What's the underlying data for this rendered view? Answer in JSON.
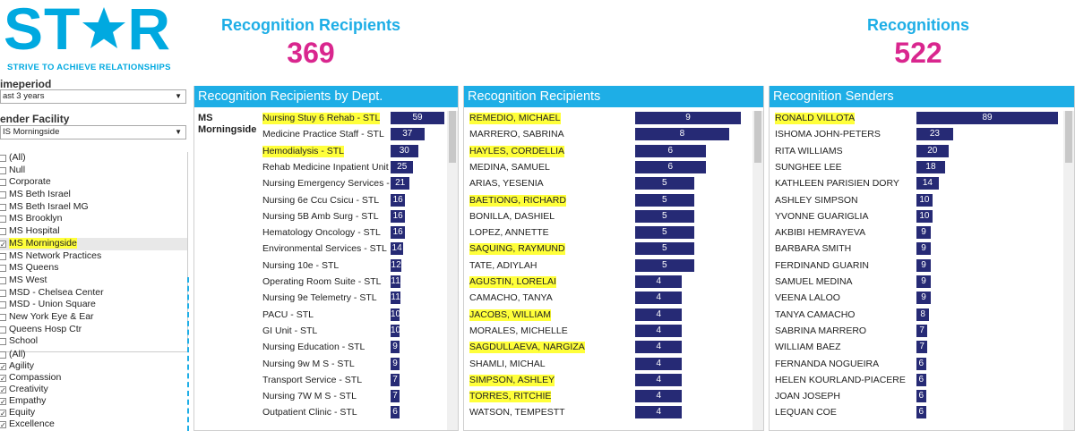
{
  "logo": {
    "text_left": "ST",
    "text_right": "R",
    "tagline": "STRIVE TO ACHIEVE RELATIONSHIPS",
    "star_icon": "star-icon",
    "brand_color": "#00a9e0"
  },
  "kpis": {
    "recipients_label": "Recognition Recipients",
    "recipients_value": "369",
    "recognitions_label": "Recognitions",
    "recognitions_value": "522",
    "label_color": "#1eaee6",
    "value_color": "#d9268e"
  },
  "filters": {
    "timeperiod_label": "imeperiod",
    "timeperiod_value": "ast 3 years",
    "facility_label": "ender Facility",
    "facility_value": "IS Morningside",
    "facility_items": [
      {
        "label": "(All)",
        "checked": false,
        "selected": false,
        "highlight": false
      },
      {
        "label": "Null",
        "checked": false,
        "selected": false,
        "highlight": false
      },
      {
        "label": "Corporate",
        "checked": false,
        "selected": false,
        "highlight": false
      },
      {
        "label": "MS Beth Israel",
        "checked": false,
        "selected": false,
        "highlight": false
      },
      {
        "label": "MS Beth Israel MG",
        "checked": false,
        "selected": false,
        "highlight": false
      },
      {
        "label": "MS Brooklyn",
        "checked": false,
        "selected": false,
        "highlight": false
      },
      {
        "label": "MS Hospital",
        "checked": false,
        "selected": false,
        "highlight": false
      },
      {
        "label": "MS Morningside",
        "checked": true,
        "selected": true,
        "highlight": true
      },
      {
        "label": "MS Network Practices",
        "checked": false,
        "selected": false,
        "highlight": false
      },
      {
        "label": "MS Queens",
        "checked": false,
        "selected": false,
        "highlight": false
      },
      {
        "label": "MS West",
        "checked": false,
        "selected": false,
        "highlight": false
      },
      {
        "label": "MSD - Chelsea Center",
        "checked": false,
        "selected": false,
        "highlight": false
      },
      {
        "label": "MSD - Union Square",
        "checked": false,
        "selected": false,
        "highlight": false
      },
      {
        "label": "New York Eye & Ear",
        "checked": false,
        "selected": false,
        "highlight": false
      },
      {
        "label": "Queens Hosp Ctr",
        "checked": false,
        "selected": false,
        "highlight": false
      },
      {
        "label": "School",
        "checked": false,
        "selected": false,
        "highlight": false
      }
    ],
    "value_items": [
      {
        "label": "(All)",
        "checked": false
      },
      {
        "label": "Agility",
        "checked": true
      },
      {
        "label": "Compassion",
        "checked": true
      },
      {
        "label": "Creativity",
        "checked": true
      },
      {
        "label": "Empathy",
        "checked": true
      },
      {
        "label": "Equity",
        "checked": true
      },
      {
        "label": "Excellence",
        "checked": true
      }
    ]
  },
  "dept_panel": {
    "title": "Recognition Recipients by Dept.",
    "facility": "MS Morningside",
    "rows": [
      {
        "label": "Nursing Stuy 6 Rehab - STL",
        "value": 59,
        "highlight": true
      },
      {
        "label": "Medicine Practice Staff - STL",
        "value": 37,
        "highlight": false
      },
      {
        "label": "Hemodialysis - STL",
        "value": 30,
        "highlight": true
      },
      {
        "label": "Rehab Medicine Inpatient Unit ...",
        "value": 25,
        "highlight": false
      },
      {
        "label": "Nursing Emergency Services - ...",
        "value": 21,
        "highlight": false
      },
      {
        "label": "Nursing 6e Ccu Csicu - STL",
        "value": 16,
        "highlight": false
      },
      {
        "label": "Nursing 5B Amb Surg - STL",
        "value": 16,
        "highlight": false
      },
      {
        "label": "Hematology Oncology - STL",
        "value": 16,
        "highlight": false
      },
      {
        "label": "Environmental Services - STL",
        "value": 14,
        "highlight": false
      },
      {
        "label": "Nursing 10e - STL",
        "value": 12,
        "highlight": false
      },
      {
        "label": "Operating Room Suite - STL",
        "value": 11,
        "highlight": false
      },
      {
        "label": "Nursing 9e Telemetry - STL",
        "value": 11,
        "highlight": false
      },
      {
        "label": "PACU - STL",
        "value": 10,
        "highlight": false
      },
      {
        "label": "GI Unit - STL",
        "value": 10,
        "highlight": false
      },
      {
        "label": "Nursing Education - STL",
        "value": 9,
        "highlight": false
      },
      {
        "label": "Nursing 9w M S - STL",
        "value": 9,
        "highlight": false
      },
      {
        "label": "Transport Service - STL",
        "value": 7,
        "highlight": false
      },
      {
        "label": "Nursing 7W M S - STL",
        "value": 7,
        "highlight": false
      },
      {
        "label": "Outpatient Clinic - STL",
        "value": 6,
        "highlight": false
      }
    ]
  },
  "recipients_panel": {
    "title": "Recognition Recipients",
    "rows": [
      {
        "label": "REMEDIO, MICHAEL",
        "value": 9,
        "highlight": true
      },
      {
        "label": "MARRERO, SABRINA",
        "value": 8,
        "highlight": false
      },
      {
        "label": "HAYLES, CORDELLIA",
        "value": 6,
        "highlight": true
      },
      {
        "label": "MEDINA, SAMUEL",
        "value": 6,
        "highlight": false
      },
      {
        "label": "ARIAS, YESENIA",
        "value": 5,
        "highlight": false
      },
      {
        "label": "BAETIONG, RICHARD",
        "value": 5,
        "highlight": true
      },
      {
        "label": "BONILLA, DASHIEL",
        "value": 5,
        "highlight": false
      },
      {
        "label": "LOPEZ, ANNETTE",
        "value": 5,
        "highlight": false
      },
      {
        "label": "SAQUING, RAYMUND",
        "value": 5,
        "highlight": true
      },
      {
        "label": "TATE, ADIYLAH",
        "value": 5,
        "highlight": false
      },
      {
        "label": "AGUSTIN, LORELAI",
        "value": 4,
        "highlight": true
      },
      {
        "label": "CAMACHO, TANYA",
        "value": 4,
        "highlight": false
      },
      {
        "label": "JACOBS, WILLIAM",
        "value": 4,
        "highlight": true
      },
      {
        "label": "MORALES, MICHELLE",
        "value": 4,
        "highlight": false
      },
      {
        "label": "SAGDULLAEVA, NARGIZA",
        "value": 4,
        "highlight": true
      },
      {
        "label": "SHAMLI, MICHAL",
        "value": 4,
        "highlight": false
      },
      {
        "label": "SIMPSON, ASHLEY",
        "value": 4,
        "highlight": true
      },
      {
        "label": "TORRES, RITCHIE",
        "value": 4,
        "highlight": true
      },
      {
        "label": "WATSON, TEMPESTT",
        "value": 4,
        "highlight": false
      }
    ]
  },
  "senders_panel": {
    "title": "Recognition Senders",
    "rows": [
      {
        "label": "RONALD VILLOTA",
        "value": 89,
        "highlight": true
      },
      {
        "label": "ISHOMA JOHN-PETERS",
        "value": 23,
        "highlight": false
      },
      {
        "label": "RITA WILLIAMS",
        "value": 20,
        "highlight": false
      },
      {
        "label": "SUNGHEE LEE",
        "value": 18,
        "highlight": false
      },
      {
        "label": "KATHLEEN PARISIEN DORY",
        "value": 14,
        "highlight": false
      },
      {
        "label": "ASHLEY SIMPSON",
        "value": 10,
        "highlight": false
      },
      {
        "label": "YVONNE GUARIGLIA",
        "value": 10,
        "highlight": false
      },
      {
        "label": "AKBIBI HEMRAYEVA",
        "value": 9,
        "highlight": false
      },
      {
        "label": "BARBARA SMITH",
        "value": 9,
        "highlight": false
      },
      {
        "label": "FERDINAND GUARIN",
        "value": 9,
        "highlight": false
      },
      {
        "label": "SAMUEL MEDINA",
        "value": 9,
        "highlight": false
      },
      {
        "label": "VEENA LALOO",
        "value": 9,
        "highlight": false
      },
      {
        "label": "TANYA CAMACHO",
        "value": 8,
        "highlight": false
      },
      {
        "label": "SABRINA MARRERO",
        "value": 7,
        "highlight": false
      },
      {
        "label": "WILLIAM BAEZ",
        "value": 7,
        "highlight": false
      },
      {
        "label": "FERNANDA NOGUEIRA",
        "value": 6,
        "highlight": false
      },
      {
        "label": "HELEN KOURLAND-PIACERE",
        "value": 6,
        "highlight": false
      },
      {
        "label": "JOAN JOSEPH",
        "value": 6,
        "highlight": false
      },
      {
        "label": "LEQUAN COE",
        "value": 6,
        "highlight": false
      }
    ]
  },
  "colors": {
    "bar": "#262a75",
    "header": "#1eaee6",
    "highlight": "#ffff3a"
  }
}
